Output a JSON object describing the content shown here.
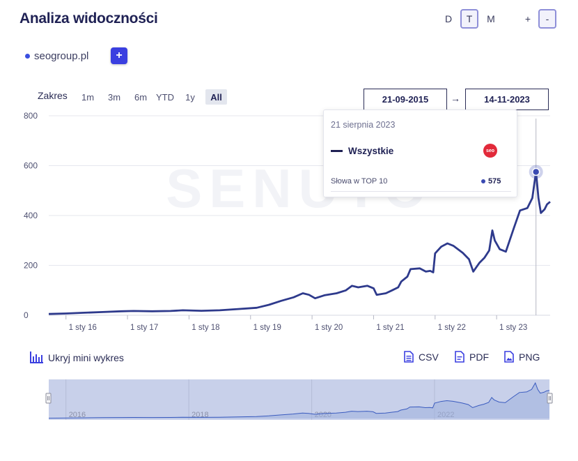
{
  "header": {
    "title": "Analiza widoczności"
  },
  "periods": {
    "d": "D",
    "t": "T",
    "m": "M",
    "plus": "+",
    "minus": "-"
  },
  "domains": [
    {
      "label": "seogroup.pl"
    }
  ],
  "add_label": "+",
  "range": {
    "label": "Zakres",
    "buttons": [
      "1m",
      "3m",
      "6m",
      "YTD",
      "1y",
      "All"
    ],
    "active": "All",
    "from": "21-09-2015",
    "arrow": "→",
    "to": "14-11-2023"
  },
  "tooltip": {
    "date": "21 sierpnia 2023",
    "series": "Wszystkie",
    "logo_text": "seo",
    "metric": "Słowa w TOP 10",
    "value": "575"
  },
  "toolbar": {
    "mini_chart": "Ukryj mini wykres",
    "csv": "CSV",
    "pdf": "PDF",
    "png": "PNG"
  },
  "watermark": "SENUTO",
  "navigator": {
    "years": [
      "2016",
      "2018",
      "2020",
      "2022"
    ]
  },
  "colors": {
    "line": "#2e3a8c",
    "accent": "#3a3fe0",
    "nav_fill": "#c8d0ea"
  },
  "chart_data": {
    "type": "line",
    "title": "",
    "xlabel": "",
    "ylabel": "",
    "ylim": [
      0,
      800
    ],
    "yticks": [
      0,
      200,
      400,
      600,
      800
    ],
    "xticks": [
      {
        "x": 2016.0,
        "label": "1 sty 16"
      },
      {
        "x": 2017.0,
        "label": "1 sty 17"
      },
      {
        "x": 2018.0,
        "label": "1 sty 18"
      },
      {
        "x": 2019.0,
        "label": "1 sty 19"
      },
      {
        "x": 2020.0,
        "label": "1 sty 20"
      },
      {
        "x": 2021.0,
        "label": "1 sty 21"
      },
      {
        "x": 2022.0,
        "label": "1 sty 22"
      },
      {
        "x": 2023.0,
        "label": "1 sty 23"
      }
    ],
    "xlim": [
      2015.72,
      2023.87
    ],
    "grid": true,
    "highlight": {
      "x": 2023.64,
      "y": 575
    },
    "series": [
      {
        "name": "Wszystkie",
        "points": [
          [
            2015.72,
            5
          ],
          [
            2016.0,
            7
          ],
          [
            2016.3,
            10
          ],
          [
            2016.6,
            13
          ],
          [
            2016.9,
            16
          ],
          [
            2017.1,
            17
          ],
          [
            2017.4,
            16
          ],
          [
            2017.7,
            17
          ],
          [
            2017.9,
            20
          ],
          [
            2018.2,
            18
          ],
          [
            2018.5,
            20
          ],
          [
            2018.8,
            25
          ],
          [
            2019.1,
            30
          ],
          [
            2019.3,
            42
          ],
          [
            2019.5,
            58
          ],
          [
            2019.7,
            72
          ],
          [
            2019.85,
            88
          ],
          [
            2019.95,
            82
          ],
          [
            2020.05,
            68
          ],
          [
            2020.2,
            80
          ],
          [
            2020.4,
            88
          ],
          [
            2020.55,
            100
          ],
          [
            2020.65,
            118
          ],
          [
            2020.75,
            112
          ],
          [
            2020.9,
            118
          ],
          [
            2021.0,
            108
          ],
          [
            2021.05,
            82
          ],
          [
            2021.2,
            88
          ],
          [
            2021.3,
            100
          ],
          [
            2021.4,
            112
          ],
          [
            2021.45,
            135
          ],
          [
            2021.55,
            155
          ],
          [
            2021.6,
            185
          ],
          [
            2021.75,
            188
          ],
          [
            2021.85,
            175
          ],
          [
            2021.92,
            178
          ],
          [
            2021.97,
            172
          ],
          [
            2022.0,
            248
          ],
          [
            2022.1,
            275
          ],
          [
            2022.2,
            288
          ],
          [
            2022.3,
            278
          ],
          [
            2022.45,
            250
          ],
          [
            2022.55,
            225
          ],
          [
            2022.62,
            175
          ],
          [
            2022.72,
            210
          ],
          [
            2022.8,
            230
          ],
          [
            2022.88,
            260
          ],
          [
            2022.93,
            340
          ],
          [
            2022.97,
            300
          ],
          [
            2023.05,
            265
          ],
          [
            2023.15,
            255
          ],
          [
            2023.28,
            350
          ],
          [
            2023.38,
            420
          ],
          [
            2023.5,
            430
          ],
          [
            2023.58,
            470
          ],
          [
            2023.64,
            575
          ],
          [
            2023.68,
            470
          ],
          [
            2023.72,
            410
          ],
          [
            2023.78,
            425
          ],
          [
            2023.82,
            445
          ],
          [
            2023.87,
            455
          ]
        ]
      }
    ]
  }
}
